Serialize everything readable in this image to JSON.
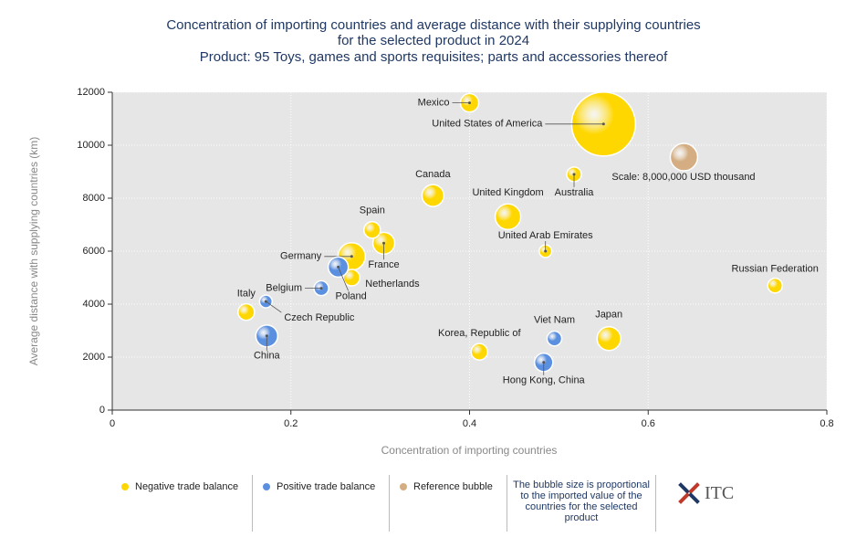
{
  "chart_data": {
    "type": "bubble",
    "title": [
      "Concentration of importing countries and average distance with their supplying countries",
      "for the selected product in 2024",
      "Product: 95 Toys, games and sports requisites; parts and accessories thereof"
    ],
    "xlabel": "Concentration of importing countries",
    "ylabel": "Average distance with supplying countries (km)",
    "xlim": [
      0,
      0.8
    ],
    "xticks": [
      0,
      0.2,
      0.4,
      0.6,
      0.8
    ],
    "ylim": [
      0,
      12000
    ],
    "yticks": [
      0,
      2000,
      4000,
      6000,
      8000,
      10000,
      12000
    ],
    "grid": true,
    "series": [
      {
        "name": "Negative trade balance",
        "color": "#ffd700",
        "labels": [
          "Mexico",
          "United States of America",
          "Australia",
          "Canada",
          "United Kingdom",
          "United Arab Emirates",
          "Spain",
          "France",
          "Germany",
          "Netherlands",
          "Italy",
          "Korea, Republic of",
          "Japan",
          "Russian Federation"
        ],
        "x": [
          0.4,
          0.55,
          0.517,
          0.359,
          0.443,
          0.485,
          0.291,
          0.304,
          0.268,
          0.268,
          0.15,
          0.411,
          0.556,
          0.742
        ],
        "values": [
          11600,
          10800,
          8900,
          8100,
          7300,
          6000,
          6800,
          6300,
          5800,
          5000,
          3700,
          2200,
          2700,
          4700
        ],
        "sizes": [
          3600000,
          43500000,
          2300000,
          5100000,
          7000000,
          1700000,
          2900000,
          5100000,
          8000000,
          2900000,
          2900000,
          2900000,
          6000000,
          2300000
        ]
      },
      {
        "name": "Positive trade balance",
        "color": "#5b8fe0",
        "labels": [
          "Poland",
          "Belgium",
          "Czech Republic",
          "China",
          "Viet Nam",
          "Hong Kong, China"
        ],
        "x": [
          0.253,
          0.234,
          0.172,
          0.173,
          0.495,
          0.483
        ],
        "values": [
          5400,
          4600,
          4100,
          2800,
          2700,
          1800
        ],
        "sizes": [
          4300000,
          2300000,
          1700000,
          5100000,
          2300000,
          3600000
        ]
      },
      {
        "name": "Reference bubble",
        "color": "#d4ae82",
        "labels": [
          "Scale: 8,000,000 USD thousand"
        ],
        "x": [
          0.64
        ],
        "values": [
          9550
        ],
        "sizes": [
          8000000
        ]
      }
    ],
    "note": "The bubble size is proportional to the imported value of the countries for the selected product",
    "logo": "ITC"
  }
}
